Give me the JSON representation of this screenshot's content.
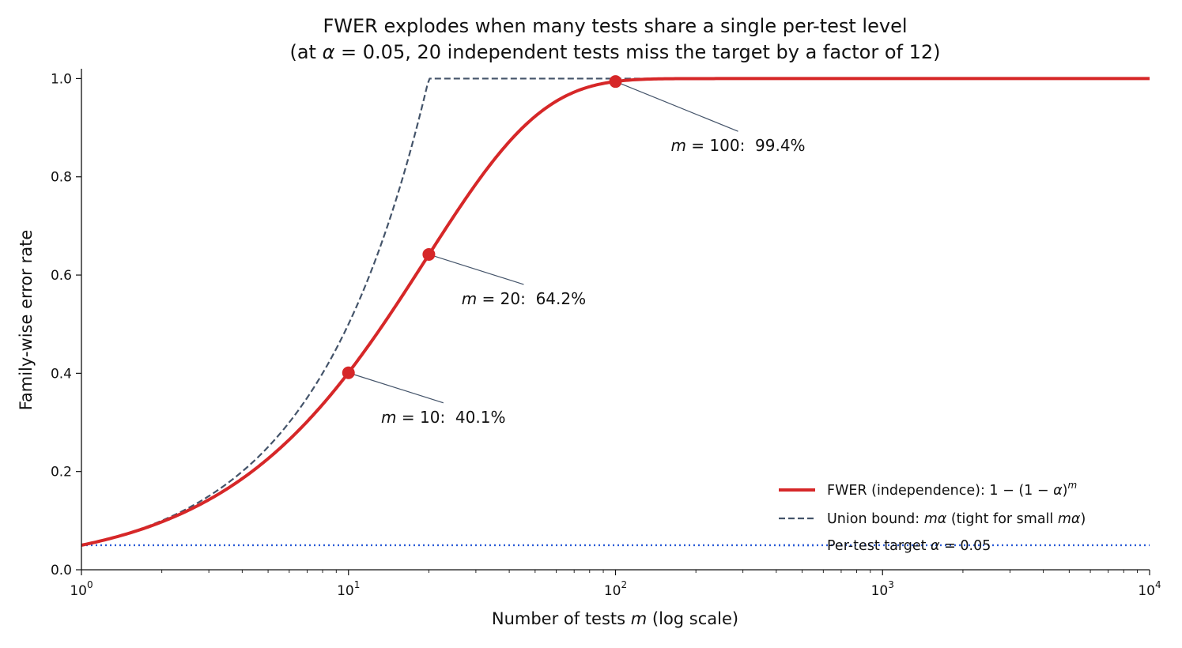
{
  "chart_data": {
    "type": "line",
    "title_line1": "FWER explodes when many tests share a single per-test level",
    "title_line2_prefix": "(at ",
    "title_line2_alpha": "α",
    "title_line2_suffix": " = 0.05, 20 independent tests miss the target by a factor of 12)",
    "xlabel_prefix": "Number of tests ",
    "xlabel_var": "m",
    "xlabel_suffix": " (log scale)",
    "ylabel": "Family-wise error rate",
    "x_scale": "log",
    "xlim": [
      1,
      10000
    ],
    "ylim": [
      0,
      1.02
    ],
    "alpha": 0.05,
    "x_ticks": [
      {
        "value": 1,
        "base": "10",
        "exp": "0"
      },
      {
        "value": 10,
        "base": "10",
        "exp": "1"
      },
      {
        "value": 100,
        "base": "10",
        "exp": "2"
      },
      {
        "value": 1000,
        "base": "10",
        "exp": "3"
      },
      {
        "value": 10000,
        "base": "10",
        "exp": "4"
      }
    ],
    "y_ticks": [
      {
        "value": 0.0,
        "label": "0.0"
      },
      {
        "value": 0.2,
        "label": "0.2"
      },
      {
        "value": 0.4,
        "label": "0.4"
      },
      {
        "value": 0.6,
        "label": "0.6"
      },
      {
        "value": 0.8,
        "label": "0.8"
      },
      {
        "value": 1.0,
        "label": "1.0"
      }
    ],
    "grid": false,
    "legend_position": "lower-right",
    "series": [
      {
        "name": "FWER (independence): 1 − (1 − α)^m",
        "formula": "1-(1-alpha)^m",
        "color": "#d62728",
        "style": "solid"
      },
      {
        "name": "Union bound: mα (tight for small mα)",
        "formula": "min(1, m*alpha)",
        "color": "#44546a",
        "style": "dashed"
      },
      {
        "name": "Per-test target α = 0.05",
        "formula": "alpha",
        "color": "#2a5bd7",
        "style": "dotted"
      }
    ],
    "highlighted_points": [
      {
        "m": 10,
        "value": 0.401,
        "label_var": "m",
        "label_eq": " = 10:",
        "label_pct": "40.1%"
      },
      {
        "m": 20,
        "value": 0.642,
        "label_var": "m",
        "label_eq": " = 20:",
        "label_pct": "64.2%"
      },
      {
        "m": 100,
        "value": 0.994,
        "label_var": "m",
        "label_eq": " = 100:",
        "label_pct": "99.4%"
      }
    ],
    "legend": {
      "fwer_prefix": "FWER (independence): 1 − (1 − ",
      "fwer_alpha": "α",
      "fwer_close": ")",
      "fwer_exp": "m",
      "union_prefix": "Union bound: ",
      "union_expr": "mα",
      "union_mid": " (tight for small ",
      "union_expr2": "mα",
      "union_close": ")",
      "target_prefix": "Per-test target ",
      "target_alpha": "α",
      "target_suffix": " = 0.05"
    }
  }
}
